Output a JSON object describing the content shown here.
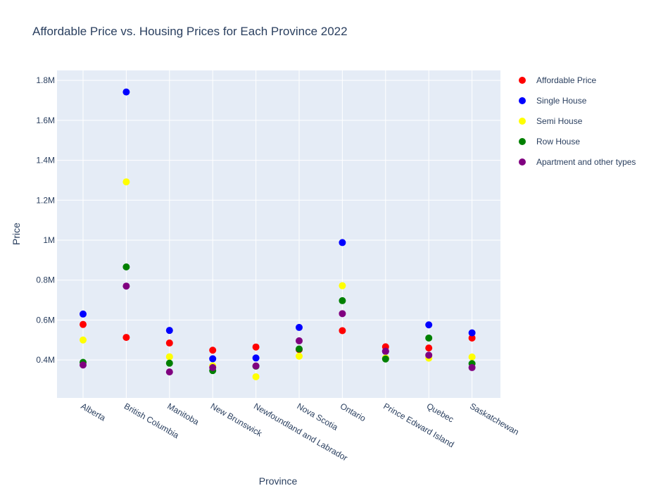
{
  "chart_data": {
    "type": "scatter",
    "title": "Affordable Price vs. Housing Prices for Each Province 2022",
    "xlabel": "Province",
    "ylabel": "Price",
    "categories": [
      "Alberta",
      "British Columbia",
      "Manitoba",
      "New Brunswick",
      "Newfoundland and Labrador",
      "Nova Scotia",
      "Ontario",
      "Prince Edward Island",
      "Quebec",
      "Saskatchewan"
    ],
    "ylim": [
      210000,
      1850000
    ],
    "yticks": [
      400000,
      600000,
      800000,
      1000000,
      1200000,
      1400000,
      1600000,
      1800000
    ],
    "ytick_labels": [
      "0.4M",
      "0.6M",
      "0.8M",
      "1M",
      "1.2M",
      "1.4M",
      "1.6M",
      "1.8M"
    ],
    "grid": true,
    "legend_position": "top-right",
    "series": [
      {
        "name": "Affordable Price",
        "color": "#ff0000",
        "values": [
          578000,
          513000,
          485000,
          449000,
          465000,
          452000,
          547000,
          466000,
          460000,
          510000
        ]
      },
      {
        "name": "Single House",
        "color": "#0000ff",
        "values": [
          630000,
          1742000,
          548000,
          406000,
          410000,
          563000,
          988000,
          443000,
          576000,
          536000
        ]
      },
      {
        "name": "Semi House",
        "color": "#ffff00",
        "values": [
          500000,
          1292000,
          416000,
          371000,
          316000,
          419000,
          772000,
          410000,
          409000,
          415000
        ]
      },
      {
        "name": "Row House",
        "color": "#008000",
        "values": [
          388000,
          866000,
          384000,
          347000,
          369000,
          455000,
          697000,
          405000,
          510000,
          382000
        ]
      },
      {
        "name": "Apartment and other types",
        "color": "#800080",
        "values": [
          375000,
          770000,
          340000,
          362000,
          370000,
          496000,
          632000,
          444000,
          424000,
          362000
        ]
      }
    ]
  }
}
